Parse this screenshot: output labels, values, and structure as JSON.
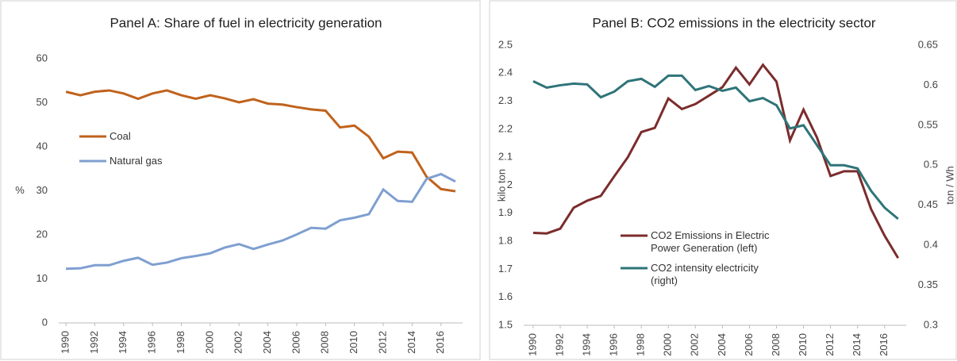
{
  "chart_data": [
    {
      "type": "line",
      "title": "Panel A: Share of fuel in electricity generation",
      "y_label": "%",
      "x": [
        1990,
        1991,
        1992,
        1993,
        1994,
        1995,
        1996,
        1997,
        1998,
        1999,
        2000,
        2001,
        2002,
        2003,
        2004,
        2005,
        2006,
        2007,
        2008,
        2009,
        2010,
        2011,
        2012,
        2013,
        2014,
        2015,
        2016,
        2017
      ],
      "xlim": [
        1989.5,
        2017.5
      ],
      "xticks": [
        1990,
        1992,
        1994,
        1996,
        1998,
        2000,
        2002,
        2004,
        2006,
        2008,
        2010,
        2012,
        2014,
        2016
      ],
      "ylim": [
        0,
        60
      ],
      "yticks": [
        0,
        10,
        20,
        30,
        40,
        50,
        60
      ],
      "grid": false,
      "series": [
        {
          "name": "Coal",
          "color": "#c0621d",
          "values": [
            52.5,
            51.7,
            52.5,
            52.8,
            52.1,
            50.9,
            52.1,
            52.8,
            51.7,
            50.9,
            51.7,
            51.0,
            50.1,
            50.8,
            49.8,
            49.6,
            49.0,
            48.5,
            48.2,
            44.4,
            44.8,
            42.3,
            37.4,
            38.9,
            38.7,
            33.2,
            30.4,
            29.9
          ]
        },
        {
          "name": "Natural gas",
          "color": "#7f9fd0",
          "values": [
            12.3,
            12.4,
            13.1,
            13.1,
            14.1,
            14.8,
            13.2,
            13.7,
            14.7,
            15.2,
            15.8,
            17.1,
            17.9,
            16.8,
            17.8,
            18.7,
            20.1,
            21.6,
            21.4,
            23.3,
            23.9,
            24.7,
            30.3,
            27.7,
            27.5,
            32.7,
            33.8,
            32.1
          ]
        }
      ]
    },
    {
      "type": "line",
      "title": "Panel B: CO2 emissions in the electricity sector",
      "y_label": "kilo ton",
      "y2_label": "ton / Wh",
      "x": [
        1990,
        1991,
        1992,
        1993,
        1994,
        1995,
        1996,
        1997,
        1998,
        1999,
        2000,
        2001,
        2002,
        2003,
        2004,
        2005,
        2006,
        2007,
        2008,
        2009,
        2010,
        2011,
        2012,
        2013,
        2014,
        2015,
        2016,
        2017
      ],
      "xlim": [
        1989.3,
        2017.6
      ],
      "xticks": [
        1990,
        1992,
        1994,
        1996,
        1998,
        2000,
        2002,
        2004,
        2006,
        2008,
        2010,
        2012,
        2014,
        2016
      ],
      "ylim": [
        1.5,
        2.5
      ],
      "yticks": [
        1.5,
        1.6,
        1.7,
        1.8,
        1.9,
        2,
        2.1,
        2.2,
        2.3,
        2.4,
        2.5
      ],
      "y2lim": [
        0.3,
        0.65
      ],
      "y2ticks": [
        0.3,
        0.35,
        0.4,
        0.45,
        0.5,
        0.55,
        0.6,
        0.65
      ],
      "grid": false,
      "series": [
        {
          "name": "CO2 Emissions in Electric Power Generation (left)",
          "color": "#7b2c2c",
          "values": [
            1.83,
            1.828,
            1.845,
            1.92,
            1.945,
            1.962,
            2.032,
            2.1,
            2.19,
            2.205,
            2.31,
            2.272,
            2.29,
            2.32,
            2.35,
            2.42,
            2.36,
            2.43,
            2.37,
            2.16,
            2.27,
            2.17,
            2.033,
            2.05,
            2.05,
            1.915,
            1.82,
            1.74
          ]
        },
        {
          "name": "CO2 intensity electricity (right)",
          "color": "#2e7478",
          "axis": "y2",
          "values": [
            0.605,
            0.597,
            0.6,
            0.602,
            0.601,
            0.585,
            0.592,
            0.605,
            0.608,
            0.598,
            0.612,
            0.612,
            0.594,
            0.599,
            0.593,
            0.597,
            0.58,
            0.584,
            0.575,
            0.546,
            0.55,
            0.525,
            0.5,
            0.5,
            0.496,
            0.468,
            0.447,
            0.433
          ]
        }
      ]
    }
  ]
}
